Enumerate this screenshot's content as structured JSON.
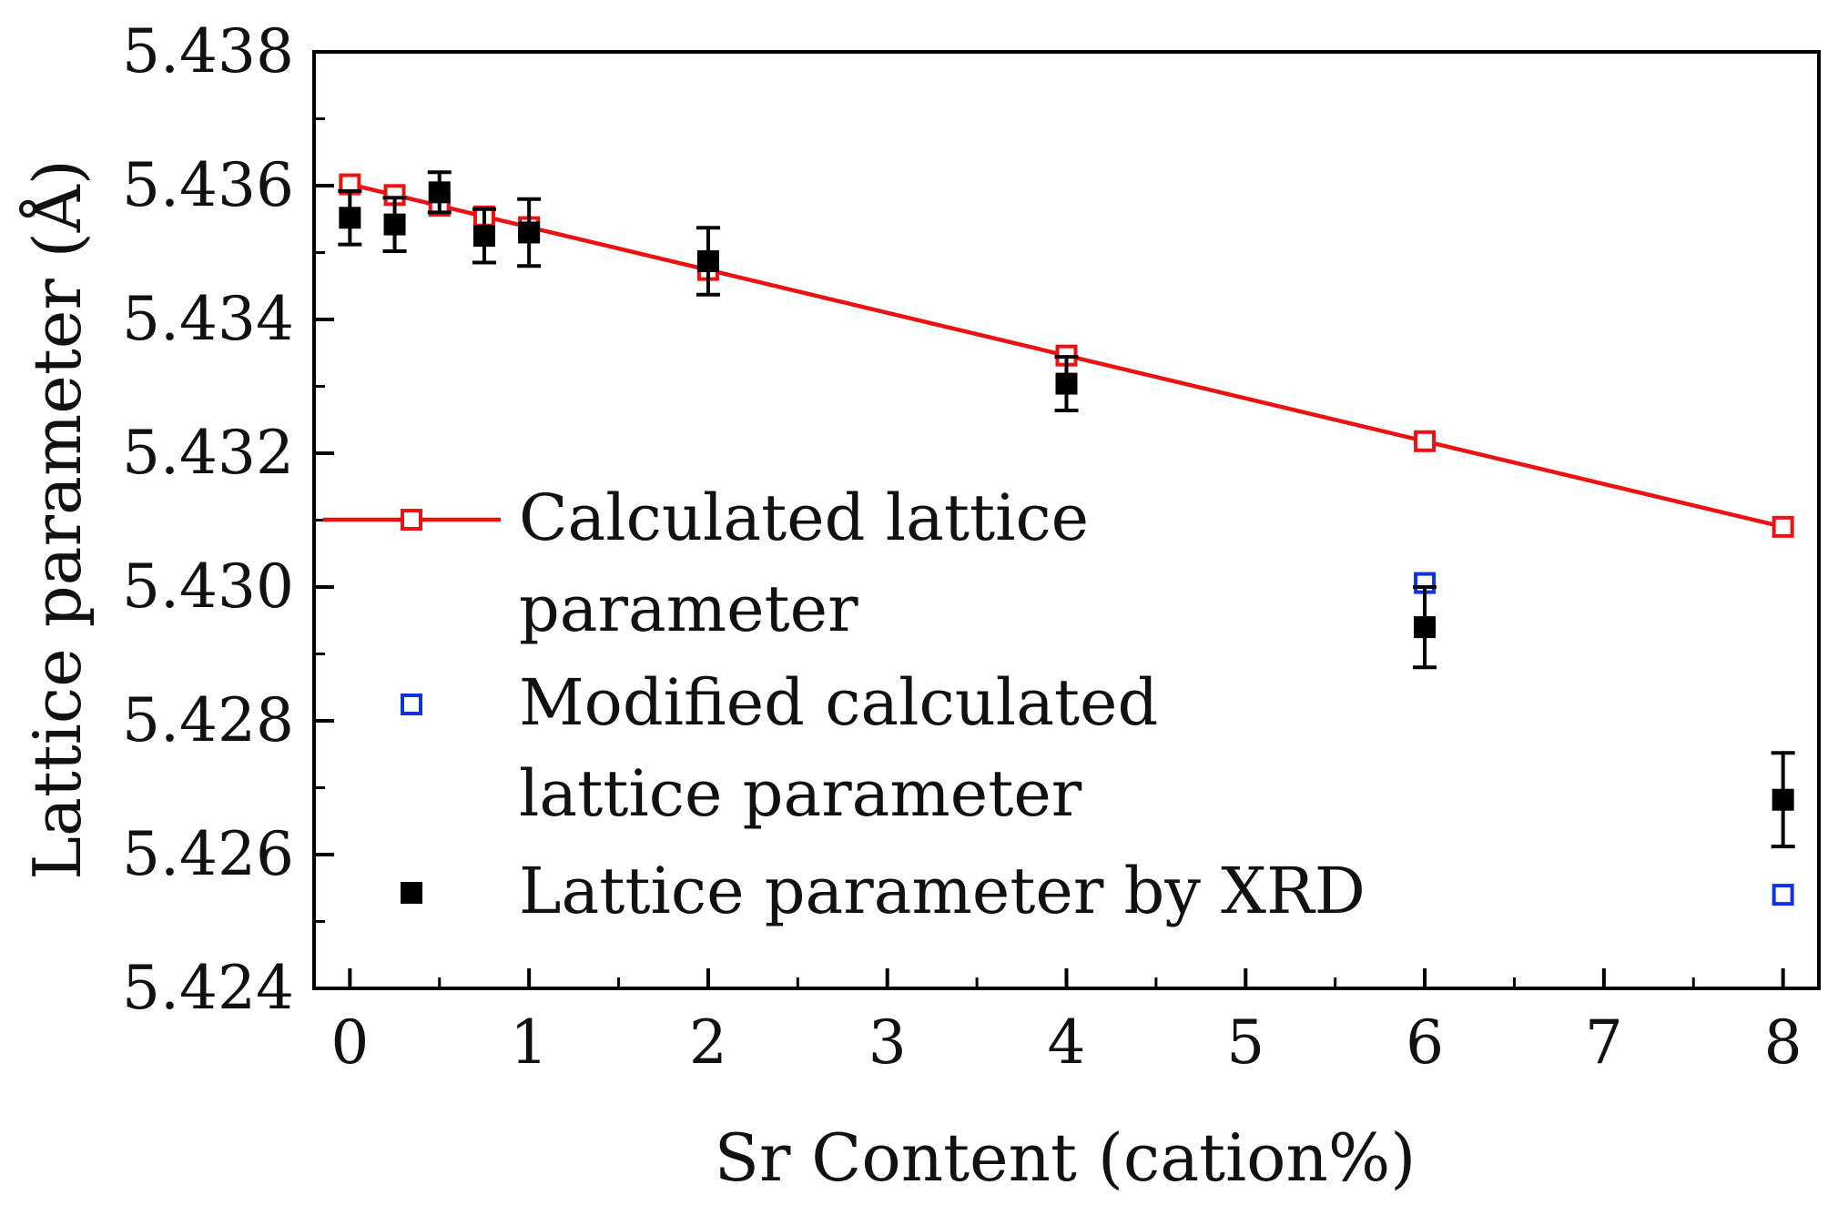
{
  "chart_data": {
    "type": "scatter",
    "title": "",
    "xlabel": "Sr Content (cation%)",
    "ylabel": "Lattice parameter (Å)",
    "xlim": [
      -0.2,
      8.2
    ],
    "ylim": [
      5.424,
      5.438
    ],
    "x_ticks": [
      "0",
      "1",
      "2",
      "3",
      "4",
      "5",
      "6",
      "7",
      "8"
    ],
    "y_ticks": [
      "5.424",
      "5.426",
      "5.428",
      "5.430",
      "5.432",
      "5.434",
      "5.436",
      "5.438"
    ],
    "grid": false,
    "legend_position": "left",
    "series": [
      {
        "name": "Calculated lattice parameter",
        "legend_lines": [
          "Calculated lattice",
          "parameter"
        ],
        "marker": "open-square",
        "line": true,
        "color": "#ee1111",
        "x": [
          0,
          0.25,
          0.5,
          0.75,
          1,
          2,
          4,
          6,
          8
        ],
        "y": [
          5.43602,
          5.43586,
          5.4357,
          5.43554,
          5.43538,
          5.43474,
          5.43346,
          5.43218,
          5.4309
        ]
      },
      {
        "name": "Modified calculated lattice parameter",
        "legend_lines": [
          "Modified calculated",
          "lattice parameter"
        ],
        "marker": "open-square",
        "line": false,
        "color": "#1133dd",
        "x": [
          6,
          8
        ],
        "y": [
          5.43006,
          5.4254
        ]
      },
      {
        "name": "Lattice parameter by XRD",
        "legend_lines": [
          "Lattice parameter by XRD"
        ],
        "marker": "filled-square",
        "line": false,
        "color": "#000000",
        "x": [
          0,
          0.25,
          0.5,
          0.75,
          1,
          2,
          4,
          6,
          8
        ],
        "y": [
          5.43552,
          5.43542,
          5.4359,
          5.43525,
          5.4353,
          5.43487,
          5.43304,
          5.4294,
          5.42682
        ],
        "error": [
          0.0004,
          0.0004,
          0.0003,
          0.0004,
          0.0005,
          0.0005,
          0.0004,
          0.0006,
          0.0007
        ]
      }
    ]
  }
}
